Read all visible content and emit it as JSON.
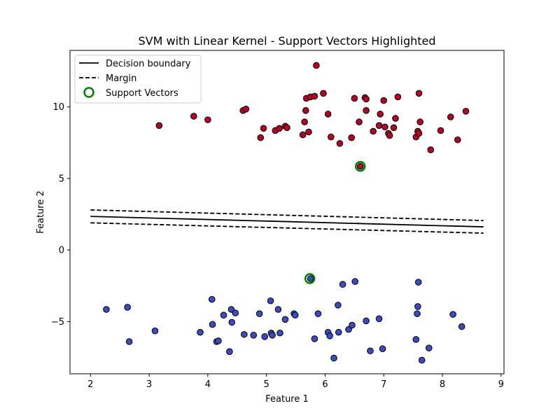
{
  "chart_data": {
    "type": "scatter",
    "title": "SVM with Linear Kernel - Support Vectors Highlighted",
    "xlabel": "Feature 1",
    "ylabel": "Feature 2",
    "xlim": [
      1.65,
      9.05
    ],
    "ylim": [
      -8.65,
      13.95
    ],
    "x_ticks": [
      2,
      3,
      4,
      5,
      6,
      7,
      8,
      9
    ],
    "y_ticks": [
      -5,
      0,
      5,
      10
    ],
    "x_tick_labels": [
      "2",
      "3",
      "4",
      "5",
      "6",
      "7",
      "8",
      "9"
    ],
    "y_tick_labels": [
      "−5",
      "0",
      "5",
      "10"
    ],
    "grid": false,
    "legend_position": "upper-left",
    "legend": {
      "decision": "Decision boundary",
      "margin": "Margin",
      "sv": "Support Vectors"
    },
    "colors": {
      "class_pos": "#b40426",
      "class_neg": "#3b4cc0",
      "support_vector": "#008000",
      "line": "#000000",
      "edge": "#000000"
    },
    "lines": [
      {
        "name": "Decision boundary",
        "style": "solid",
        "points": [
          [
            2.0,
            2.35
          ],
          [
            8.7,
            1.62
          ]
        ]
      },
      {
        "name": "Margin",
        "style": "dashed",
        "points": [
          [
            2.0,
            2.8
          ],
          [
            8.7,
            2.06
          ]
        ]
      },
      {
        "name": "Margin",
        "style": "dashed",
        "points": [
          [
            2.0,
            1.9
          ],
          [
            8.7,
            1.18
          ]
        ]
      }
    ],
    "support_vectors": [
      [
        6.6,
        5.85
      ],
      [
        5.74,
        -2.0
      ]
    ],
    "series": [
      {
        "class": "positive",
        "points": [
          [
            3.17,
            8.7
          ],
          [
            3.76,
            9.35
          ],
          [
            4.0,
            9.1
          ],
          [
            4.6,
            9.75
          ],
          [
            4.65,
            9.85
          ],
          [
            4.9,
            7.85
          ],
          [
            4.95,
            8.5
          ],
          [
            5.15,
            8.35
          ],
          [
            5.22,
            8.5
          ],
          [
            5.32,
            8.65
          ],
          [
            5.35,
            8.55
          ],
          [
            5.62,
            8.05
          ],
          [
            5.65,
            8.95
          ],
          [
            5.67,
            9.75
          ],
          [
            5.68,
            10.6
          ],
          [
            5.72,
            8.25
          ],
          [
            5.75,
            10.7
          ],
          [
            5.82,
            10.75
          ],
          [
            5.85,
            12.9
          ],
          [
            5.97,
            10.95
          ],
          [
            6.05,
            9.5
          ],
          [
            6.1,
            7.9
          ],
          [
            6.25,
            7.45
          ],
          [
            6.45,
            7.85
          ],
          [
            6.5,
            10.6
          ],
          [
            6.58,
            8.95
          ],
          [
            6.68,
            10.65
          ],
          [
            6.7,
            10.55
          ],
          [
            6.7,
            9.75
          ],
          [
            6.82,
            8.3
          ],
          [
            6.92,
            8.7
          ],
          [
            6.94,
            9.5
          ],
          [
            7.0,
            10.45
          ],
          [
            7.02,
            8.6
          ],
          [
            7.08,
            8.15
          ],
          [
            7.1,
            8.0
          ],
          [
            7.17,
            8.55
          ],
          [
            7.2,
            9.2
          ],
          [
            7.24,
            10.7
          ],
          [
            7.55,
            7.9
          ],
          [
            7.58,
            8.3
          ],
          [
            7.6,
            8.15
          ],
          [
            7.6,
            10.95
          ],
          [
            7.62,
            8.95
          ],
          [
            7.8,
            7.0
          ],
          [
            7.97,
            8.35
          ],
          [
            8.14,
            9.3
          ],
          [
            8.26,
            7.7
          ],
          [
            8.4,
            9.7
          ],
          [
            6.6,
            5.85
          ]
        ]
      },
      {
        "class": "negative",
        "points": [
          [
            2.27,
            -4.15
          ],
          [
            2.63,
            -4.0
          ],
          [
            2.66,
            -6.4
          ],
          [
            3.1,
            -5.65
          ],
          [
            3.87,
            -5.75
          ],
          [
            4.07,
            -3.45
          ],
          [
            4.08,
            -5.2
          ],
          [
            4.15,
            -6.4
          ],
          [
            4.18,
            -6.35
          ],
          [
            4.27,
            -4.55
          ],
          [
            4.37,
            -7.1
          ],
          [
            4.4,
            -4.15
          ],
          [
            4.41,
            -5.05
          ],
          [
            4.47,
            -4.4
          ],
          [
            4.62,
            -5.9
          ],
          [
            4.78,
            -5.95
          ],
          [
            4.88,
            -4.45
          ],
          [
            4.97,
            -6.05
          ],
          [
            5.07,
            -3.55
          ],
          [
            5.08,
            -5.8
          ],
          [
            5.1,
            -5.95
          ],
          [
            5.2,
            -4.15
          ],
          [
            5.23,
            -5.8
          ],
          [
            5.32,
            -4.85
          ],
          [
            5.47,
            -4.45
          ],
          [
            5.49,
            -4.55
          ],
          [
            5.75,
            -2.0
          ],
          [
            5.82,
            -6.2
          ],
          [
            5.88,
            -4.45
          ],
          [
            6.05,
            -5.75
          ],
          [
            6.08,
            -6.0
          ],
          [
            6.15,
            -7.55
          ],
          [
            6.22,
            -3.85
          ],
          [
            6.23,
            -5.75
          ],
          [
            6.3,
            -2.4
          ],
          [
            6.4,
            -5.55
          ],
          [
            6.46,
            -5.25
          ],
          [
            6.51,
            -2.2
          ],
          [
            6.7,
            -4.95
          ],
          [
            6.77,
            -7.05
          ],
          [
            6.92,
            -4.8
          ],
          [
            6.98,
            -6.9
          ],
          [
            7.55,
            -6.25
          ],
          [
            7.57,
            -4.45
          ],
          [
            7.58,
            -3.95
          ],
          [
            7.59,
            -2.25
          ],
          [
            7.65,
            -7.7
          ],
          [
            7.77,
            -6.85
          ],
          [
            8.18,
            -4.5
          ],
          [
            8.33,
            -5.35
          ]
        ]
      }
    ]
  }
}
